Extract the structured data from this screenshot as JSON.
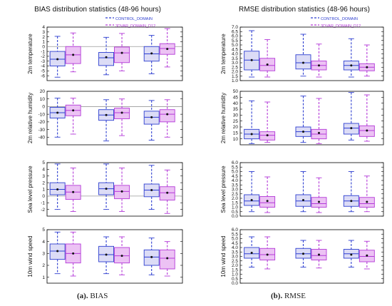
{
  "colors": {
    "control": "#2e3fd0",
    "control_fill": "#dcdcf6",
    "threedvar": "#b43ad8",
    "threedvar_fill": "#ecc2f4",
    "refline": "#9a9a9a",
    "axis": "#000000"
  },
  "captions": [
    {
      "label": "(a).",
      "text": " BIAS"
    },
    {
      "label": "(b).",
      "text": " RMSE"
    }
  ],
  "chart_data": [
    {
      "type": "boxplot",
      "title": "BIAS distribution statistics (48-96 hours)",
      "legend": [
        "CONTROL_DOMAIN",
        "3DVAR_DOMAIN_D12"
      ],
      "legend_position": "top-right",
      "series_names": [
        "CONTROL_DOMAIN",
        "3DVAR_DOMAIN_D12"
      ],
      "panels": [
        {
          "ylabel": "2m temperature",
          "ylim": [
            -7,
            4
          ],
          "yticks": [
            -6,
            -5,
            -4,
            -3,
            -2,
            -1,
            0,
            1,
            2,
            3,
            4
          ],
          "yticklabels": [
            "-6",
            "-5",
            "-4",
            "-3",
            "-2",
            "-1",
            "0",
            "1",
            "2",
            "3",
            "4"
          ],
          "refline": 0,
          "groups": [
            [
              {
                "min": -6.3,
                "q1": -4.0,
                "median": -2.6,
                "q3": -1.0,
                "max": 2.1,
                "mean": -2.6
              },
              {
                "min": -5.2,
                "q1": -3.5,
                "median": -1.7,
                "q3": 0.0,
                "max": 2.8,
                "mean": -1.7
              }
            ],
            [
              {
                "min": -5.8,
                "q1": -3.9,
                "median": -2.3,
                "q3": -1.2,
                "max": 1.9,
                "mean": -2.2
              },
              {
                "min": -5.0,
                "q1": -3.3,
                "median": -1.3,
                "q3": -0.1,
                "max": 2.7,
                "mean": -1.3
              }
            ],
            [
              {
                "min": -5.6,
                "q1": -3.0,
                "median": -1.5,
                "q3": 0.0,
                "max": 2.3,
                "mean": -1.4
              },
              {
                "min": -4.2,
                "q1": -1.6,
                "median": -0.4,
                "q3": 0.6,
                "max": 3.7,
                "mean": -0.5
              }
            ]
          ]
        },
        {
          "ylabel": "2m relative humidity",
          "ylim": [
            -50,
            20
          ],
          "yticks": [
            -40,
            -30,
            -20,
            -10,
            0,
            10,
            20
          ],
          "yticklabels": [
            "-40",
            "-30",
            "-20",
            "-10",
            "0",
            "10",
            "20"
          ],
          "refline": 0,
          "groups": [
            [
              {
                "min": -40,
                "q1": -15,
                "median": -8,
                "q3": -1,
                "max": 11,
                "mean": -8
              },
              {
                "min": -36,
                "q1": -12,
                "median": -5,
                "q3": 2,
                "max": 11,
                "mean": -5
              }
            ],
            [
              {
                "min": -45,
                "q1": -18,
                "median": -11,
                "q3": -4,
                "max": 9,
                "mean": -11
              },
              {
                "min": -38,
                "q1": -16,
                "median": -8,
                "q3": -2,
                "max": 10,
                "mean": -8
              }
            ],
            [
              {
                "min": -44,
                "q1": -23,
                "median": -14,
                "q3": -6,
                "max": 8,
                "mean": -14
              },
              {
                "min": -40,
                "q1": -20,
                "median": -10,
                "q3": -4,
                "max": 9,
                "mean": -10
              }
            ]
          ]
        },
        {
          "ylabel": "Sea level pressure",
          "ylim": [
            -3,
            5
          ],
          "yticks": [
            -2,
            -1,
            0,
            1,
            2,
            3,
            4,
            5
          ],
          "yticklabels": [
            "-2",
            "-1",
            "0",
            "1",
            "2",
            "3",
            "4",
            "5"
          ],
          "refline": 0,
          "groups": [
            [
              {
                "min": -2.0,
                "q1": 0.2,
                "median": 1.0,
                "q3": 2.0,
                "max": 4.8,
                "mean": 1.0
              },
              {
                "min": -2.3,
                "q1": -0.5,
                "median": 0.6,
                "q3": 1.6,
                "max": 4.2,
                "mean": 0.6
              }
            ],
            [
              {
                "min": -2.0,
                "q1": 0.2,
                "median": 1.1,
                "q3": 2.0,
                "max": 4.8,
                "mean": 1.1
              },
              {
                "min": -2.3,
                "q1": -0.4,
                "median": 0.7,
                "q3": 1.6,
                "max": 4.2,
                "mean": 0.7
              }
            ],
            [
              {
                "min": -2.0,
                "q1": -0.1,
                "median": 0.9,
                "q3": 1.8,
                "max": 4.6,
                "mean": 0.9
              },
              {
                "min": -2.6,
                "q1": -0.6,
                "median": 0.5,
                "q3": 1.4,
                "max": 3.9,
                "mean": 0.5
              }
            ]
          ]
        },
        {
          "ylabel": "10m wind speed",
          "ylim": [
            0.5,
            5
          ],
          "yticks": [
            1,
            2,
            3,
            4,
            5
          ],
          "yticklabels": [
            "1",
            "2",
            "3",
            "4",
            "5"
          ],
          "refline": null,
          "groups": [
            [
              {
                "min": 1.3,
                "q1": 2.5,
                "median": 3.2,
                "q3": 3.8,
                "max": 4.8,
                "mean": 3.2
              },
              {
                "min": 1.1,
                "q1": 2.2,
                "median": 3.0,
                "q3": 3.8,
                "max": 4.8,
                "mean": 3.0
              }
            ],
            [
              {
                "min": 1.3,
                "q1": 2.3,
                "median": 2.9,
                "q3": 3.6,
                "max": 4.4,
                "mean": 2.9
              },
              {
                "min": 1.2,
                "q1": 2.2,
                "median": 2.8,
                "q3": 3.5,
                "max": 4.4,
                "mean": 2.8
              }
            ],
            [
              {
                "min": 1.2,
                "q1": 2.0,
                "median": 2.7,
                "q3": 3.3,
                "max": 4.3,
                "mean": 2.7
              },
              {
                "min": 1.1,
                "q1": 1.7,
                "median": 2.6,
                "q3": 3.3,
                "max": 4.0,
                "mean": 2.6
              }
            ]
          ]
        }
      ]
    },
    {
      "type": "boxplot",
      "title": "RMSE distribution statistics (48-96 hours)",
      "legend": [
        "CONTROL_DOMAIN",
        "3DVAR_DOMAIN_D12"
      ],
      "legend_position": "top-right",
      "series_names": [
        "CONTROL_DOMAIN",
        "3DVAR_DOMAIN_D12"
      ],
      "panels": [
        {
          "ylabel": "2m temperature",
          "ylim": [
            1.0,
            7.0
          ],
          "yticks": [
            1,
            1.5,
            2,
            2.5,
            3,
            3.5,
            4,
            4.5,
            5,
            5.5,
            6,
            6.5,
            7
          ],
          "yticklabels": [
            "1.0",
            "1.5",
            "2.0",
            "2.5",
            "3.0",
            "3.5",
            "4.0",
            "4.5",
            "5.0",
            "5.5",
            "6.0",
            "6.5",
            "7.0"
          ],
          "refline": null,
          "groups": [
            [
              {
                "min": 1.4,
                "q1": 2.2,
                "median": 3.3,
                "q3": 4.3,
                "max": 6.6,
                "mean": 3.3
              },
              {
                "min": 1.4,
                "q1": 2.1,
                "median": 2.7,
                "q3": 3.5,
                "max": 5.6,
                "mean": 2.8
              }
            ],
            [
              {
                "min": 1.5,
                "q1": 2.3,
                "median": 3.0,
                "q3": 3.9,
                "max": 6.2,
                "mean": 3.0
              },
              {
                "min": 1.4,
                "q1": 2.2,
                "median": 2.7,
                "q3": 3.2,
                "max": 5.1,
                "mean": 2.7
              }
            ],
            [
              {
                "min": 1.4,
                "q1": 2.2,
                "median": 2.7,
                "q3": 3.2,
                "max": 5.7,
                "mean": 2.7
              },
              {
                "min": 1.5,
                "q1": 2.1,
                "median": 2.5,
                "q3": 2.9,
                "max": 5.0,
                "mean": 2.5
              }
            ]
          ]
        },
        {
          "ylabel": "2m relative humidity",
          "ylim": [
            5,
            50
          ],
          "yticks": [
            10,
            15,
            20,
            25,
            30,
            35,
            40,
            45,
            50
          ],
          "yticklabels": [
            "10",
            "15",
            "20",
            "25",
            "30",
            "35",
            "40",
            "45",
            "50"
          ],
          "refline": null,
          "groups": [
            [
              {
                "min": 6,
                "q1": 10,
                "median": 14,
                "q3": 18,
                "max": 42,
                "mean": 14
              },
              {
                "min": 7,
                "q1": 9,
                "median": 13,
                "q3": 16,
                "max": 41,
                "mean": 13
              }
            ],
            [
              {
                "min": 7,
                "q1": 12,
                "median": 16,
                "q3": 20,
                "max": 46,
                "mean": 16
              },
              {
                "min": 6,
                "q1": 10,
                "median": 14,
                "q3": 18,
                "max": 44,
                "mean": 15
              }
            ],
            [
              {
                "min": 9,
                "q1": 14,
                "median": 19,
                "q3": 23,
                "max": 49,
                "mean": 19
              },
              {
                "min": 8,
                "q1": 12,
                "median": 17,
                "q3": 21,
                "max": 47,
                "mean": 17
              }
            ]
          ]
        },
        {
          "ylabel": "Sea level pressure",
          "ylim": [
            0,
            6
          ],
          "yticks": [
            0,
            0.5,
            1,
            1.5,
            2,
            2.5,
            3,
            3.5,
            4,
            4.5,
            5,
            5.5,
            6
          ],
          "yticklabels": [
            "0.0",
            "0.5",
            "1.0",
            "1.5",
            "2.0",
            "2.5",
            "3.0",
            "3.5",
            "4.0",
            "4.5",
            "5.0",
            "5.5",
            "6.0"
          ],
          "refline": null,
          "groups": [
            [
              {
                "min": 0.5,
                "q1": 1.2,
                "median": 1.7,
                "q3": 2.4,
                "max": 5.0,
                "mean": 1.8
              },
              {
                "min": 0.4,
                "q1": 1.0,
                "median": 1.5,
                "q3": 2.2,
                "max": 4.4,
                "mean": 1.7
              }
            ],
            [
              {
                "min": 0.5,
                "q1": 1.1,
                "median": 1.7,
                "q3": 2.4,
                "max": 5.0,
                "mean": 1.8
              },
              {
                "min": 0.4,
                "q1": 1.0,
                "median": 1.4,
                "q3": 2.1,
                "max": 4.3,
                "mean": 1.6
              }
            ],
            [
              {
                "min": 0.5,
                "q1": 1.1,
                "median": 1.7,
                "q3": 2.3,
                "max": 5.0,
                "mean": 1.7
              },
              {
                "min": 0.5,
                "q1": 1.0,
                "median": 1.4,
                "q3": 2.1,
                "max": 4.5,
                "mean": 1.6
              }
            ]
          ]
        },
        {
          "ylabel": "10m wind speed",
          "ylim": [
            0,
            6
          ],
          "yticks": [
            0,
            0.5,
            1,
            1.5,
            2,
            2.5,
            3,
            3.5,
            4,
            4.5,
            5,
            5.5,
            6
          ],
          "yticklabels": [
            "0.0",
            "0.5",
            "1.0",
            "1.5",
            "2.0",
            "2.5",
            "3.0",
            "3.5",
            "4.0",
            "4.5",
            "5.0",
            "5.5",
            "6.0"
          ],
          "refline": null,
          "groups": [
            [
              {
                "min": 1.8,
                "q1": 2.8,
                "median": 3.3,
                "q3": 4.0,
                "max": 5.2,
                "mean": 3.4
              },
              {
                "min": 1.6,
                "q1": 2.6,
                "median": 3.2,
                "q3": 3.9,
                "max": 5.2,
                "mean": 3.2
              }
            ],
            [
              {
                "min": 1.8,
                "q1": 2.8,
                "median": 3.3,
                "q3": 3.9,
                "max": 4.8,
                "mean": 3.3
              },
              {
                "min": 1.7,
                "q1": 2.6,
                "median": 3.1,
                "q3": 3.8,
                "max": 4.8,
                "mean": 3.2
              }
            ],
            [
              {
                "min": 1.8,
                "q1": 2.8,
                "median": 3.3,
                "q3": 3.8,
                "max": 4.8,
                "mean": 3.2
              },
              {
                "min": 1.6,
                "q1": 2.4,
                "median": 3.0,
                "q3": 3.7,
                "max": 4.7,
                "mean": 3.1
              }
            ]
          ]
        }
      ]
    }
  ]
}
